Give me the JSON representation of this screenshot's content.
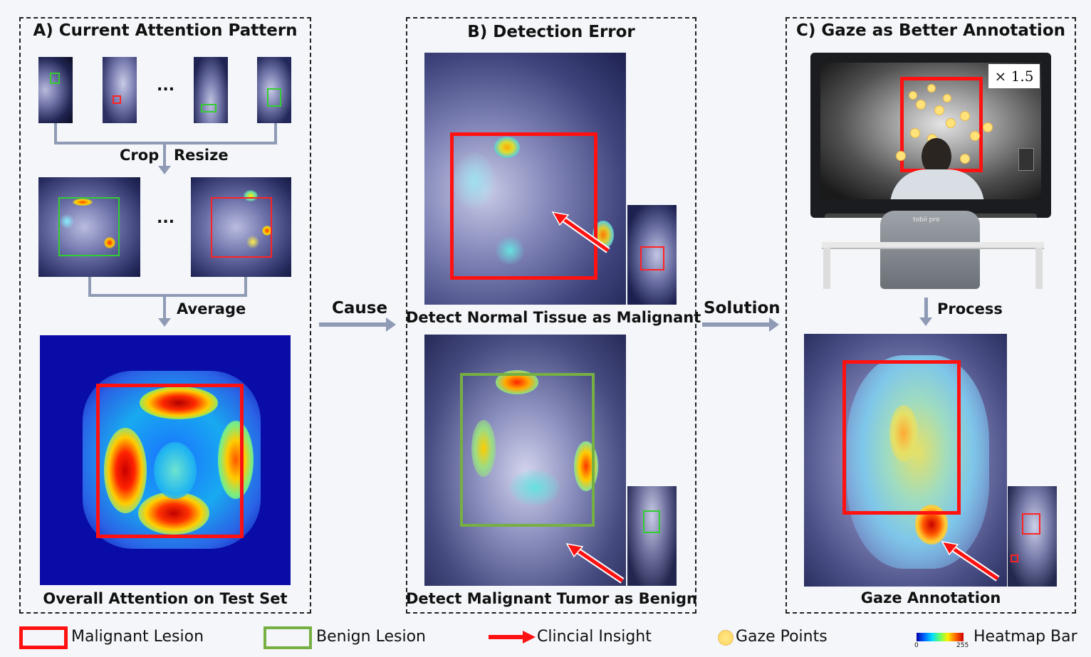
{
  "panel_a": {
    "title": "A) Current Attention Pattern",
    "crop_label": "Crop",
    "resize_label": "Resize",
    "average_label": "Average",
    "caption": "Overall Attention on Test Set",
    "ellipsis": "..."
  },
  "cause_label": "Cause",
  "panel_b": {
    "title": "B) Detection Error",
    "caption_top": "Detect Normal Tissue as Malignant",
    "caption_bottom": "Detect Malignant Tumor as Benign"
  },
  "solution_label": "Solution",
  "panel_c": {
    "title": "C) Gaze as Better Annotation",
    "zoom_label": "× 1.5",
    "process_label": "Process",
    "caption": "Gaze Annotation",
    "monitor_brand": "tobii pro"
  },
  "legend": {
    "malignant": "Malignant Lesion",
    "benign": "Benign Lesion",
    "insight": "Clincial Insight",
    "gaze": "Gaze Points",
    "heatmap": "Heatmap Bar",
    "heat_min": "0",
    "heat_max": "255"
  },
  "colors": {
    "malignant": "#ff1111",
    "benign": "#76b043",
    "connector": "#8f9bb5"
  }
}
